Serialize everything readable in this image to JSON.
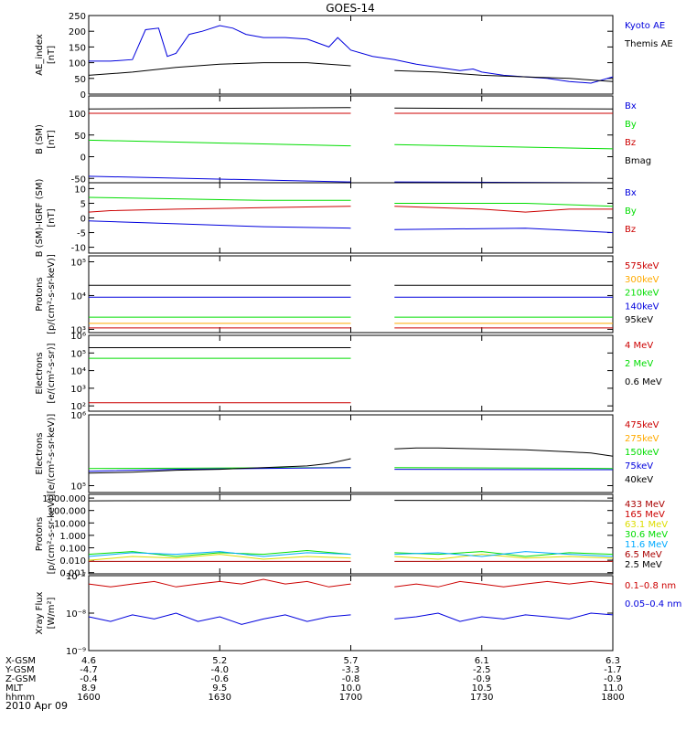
{
  "title": "GOES-14",
  "date": "2010 Apr 09",
  "colors": {
    "black": "#000000",
    "blue": "#0000dd",
    "green": "#00dd00",
    "red": "#cc0000",
    "orange": "#ffaa00",
    "yellow": "#dddd00",
    "cyan": "#00aaff",
    "darkred": "#aa0000"
  },
  "footer": {
    "rows": [
      {
        "label": "X-GSM",
        "values": [
          "4.6",
          "5.2",
          "5.7",
          "6.1",
          "6.3"
        ]
      },
      {
        "label": "Y-GSM",
        "values": [
          "-4.7",
          "-4.0",
          "-3.3",
          "-2.5",
          "-1.7"
        ]
      },
      {
        "label": "Z-GSM",
        "values": [
          "-0.4",
          "-0.6",
          "-0.8",
          "-0.9",
          "-0.9"
        ]
      },
      {
        "label": "MLT",
        "values": [
          "8.9",
          "9.5",
          "10.0",
          "10.5",
          "11.0"
        ]
      },
      {
        "label": "hhmm",
        "values": [
          "1600",
          "1630",
          "1700",
          "1730",
          "1800"
        ]
      }
    ]
  },
  "chart_data": [
    {
      "type": "line",
      "ylabel": "AE_index\n[nT]",
      "yscale": "linear",
      "ylim": [
        0,
        250
      ],
      "yticks": [
        "0",
        "50",
        "100",
        "150",
        "200",
        "250"
      ],
      "ytick_values": [
        0,
        50,
        100,
        150,
        200,
        250
      ],
      "series": [
        {
          "name": "Kyoto AE",
          "color": "blue",
          "x": [
            1600,
            1605,
            1610,
            1613,
            1616,
            1618,
            1620,
            1623,
            1626,
            1630,
            1633,
            1636,
            1640,
            1645,
            1650,
            1655,
            1657,
            1700,
            1705,
            1710,
            1715,
            1720,
            1725,
            1728,
            1730,
            1735,
            1740,
            1745,
            1750,
            1755,
            1800
          ],
          "y": [
            105,
            105,
            110,
            205,
            210,
            120,
            130,
            190,
            200,
            218,
            210,
            190,
            180,
            180,
            175,
            150,
            180,
            140,
            120,
            110,
            95,
            85,
            75,
            80,
            70,
            60,
            55,
            50,
            40,
            35,
            55
          ]
        },
        {
          "name": "Themis AE",
          "color": "black",
          "x": [
            1600,
            1610,
            1620,
            1630,
            1640,
            1650,
            1700,
            1710,
            1720,
            1730,
            1740,
            1750,
            1800
          ],
          "y": [
            60,
            70,
            85,
            95,
            100,
            100,
            90,
            75,
            70,
            60,
            55,
            50,
            40
          ]
        }
      ]
    },
    {
      "type": "line",
      "ylabel": "B (SM)\n[nT]",
      "yscale": "linear",
      "ylim": [
        -60,
        140
      ],
      "yticks": [
        "-50",
        "0",
        "50",
        "100"
      ],
      "ytick_values": [
        -50,
        0,
        50,
        100
      ],
      "series": [
        {
          "name": "Bx",
          "color": "blue",
          "x": [
            1600,
            1700,
            1710,
            1800
          ],
          "y": [
            -45,
            -58,
            -58,
            -60
          ]
        },
        {
          "name": "By",
          "color": "green",
          "x": [
            1600,
            1700,
            1710,
            1800
          ],
          "y": [
            38,
            25,
            28,
            18
          ]
        },
        {
          "name": "Bz",
          "color": "red",
          "x": [
            1600,
            1700,
            1710,
            1800
          ],
          "y": [
            100,
            100,
            100,
            100
          ]
        },
        {
          "name": "Bmag",
          "color": "black",
          "x": [
            1600,
            1700,
            1710,
            1800
          ],
          "y": [
            110,
            113,
            112,
            110
          ]
        }
      ]
    },
    {
      "type": "line",
      "ylabel": "B (SM)-IGRF (SM)\n[nT]",
      "yscale": "linear",
      "ylim": [
        -12,
        12
      ],
      "yticks": [
        "-10",
        "-5",
        "0",
        "5",
        "10"
      ],
      "ytick_values": [
        -10,
        -5,
        0,
        5,
        10
      ],
      "series": [
        {
          "name": "Bx",
          "color": "blue",
          "x": [
            1600,
            1620,
            1640,
            1700,
            1710,
            1740,
            1800
          ],
          "y": [
            -1,
            -2,
            -3,
            -3.5,
            -4,
            -3.5,
            -5
          ]
        },
        {
          "name": "By",
          "color": "green",
          "x": [
            1600,
            1620,
            1640,
            1700,
            1710,
            1740,
            1800
          ],
          "y": [
            7,
            6.5,
            6,
            6,
            5,
            5,
            4
          ]
        },
        {
          "name": "Bz",
          "color": "red",
          "x": [
            1600,
            1605,
            1620,
            1640,
            1700,
            1710,
            1730,
            1740,
            1750,
            1800
          ],
          "y": [
            2,
            2.5,
            3,
            3.5,
            4,
            4,
            3,
            2,
            3,
            3
          ]
        }
      ]
    },
    {
      "type": "line",
      "ylabel": "Protons\n[p/(cm²-s-sr-keV)]",
      "yscale": "log",
      "ylim": [
        800,
        150000
      ],
      "yticks": [
        "10³",
        "10⁴",
        "10⁵"
      ],
      "ytick_values": [
        1000,
        10000,
        100000
      ],
      "series": [
        {
          "name": "575keV",
          "color": "red",
          "x": [
            1600,
            1700,
            1710,
            1800
          ],
          "y": [
            1100,
            1100,
            1100,
            1100
          ]
        },
        {
          "name": "300keV",
          "color": "orange",
          "x": [
            1600,
            1700,
            1710,
            1800
          ],
          "y": [
            1500,
            1500,
            1500,
            1500
          ]
        },
        {
          "name": "210keV",
          "color": "green",
          "x": [
            1600,
            1700,
            1710,
            1800
          ],
          "y": [
            2300,
            2300,
            2300,
            2300
          ]
        },
        {
          "name": "140keV",
          "color": "blue",
          "x": [
            1600,
            1700,
            1710,
            1800
          ],
          "y": [
            9000,
            9000,
            9000,
            9000
          ]
        },
        {
          "name": "95keV",
          "color": "black",
          "x": [
            1600,
            1700,
            1710,
            1800
          ],
          "y": [
            20000,
            20000,
            20000,
            20000
          ]
        }
      ]
    },
    {
      "type": "line",
      "ylabel": "Electrons\n[e/(cm²-s-sr)]",
      "yscale": "log",
      "ylim": [
        50,
        1000000
      ],
      "yticks": [
        "10²",
        "10³",
        "10⁴",
        "10⁵",
        "10⁶"
      ],
      "ytick_values": [
        100,
        1000,
        10000,
        100000,
        1000000
      ],
      "series": [
        {
          "name": "4 MeV",
          "color": "red",
          "x": [
            1600,
            1700
          ],
          "y": [
            150,
            150
          ]
        },
        {
          "name": "2 MeV",
          "color": "green",
          "x": [
            1600,
            1700
          ],
          "y": [
            50000,
            50000
          ]
        },
        {
          "name": "0.6 MeV",
          "color": "black",
          "x": [
            1600,
            1700
          ],
          "y": [
            200000,
            200000
          ]
        }
      ]
    },
    {
      "type": "line",
      "ylabel": "Electrons\n[e/(cm²-s-sr-keV)]",
      "yscale": "log",
      "ylim": [
        80000,
        1000000
      ],
      "yticks": [
        "10⁵",
        "10⁶"
      ],
      "ytick_values": [
        100000,
        1000000
      ],
      "series": [
        {
          "name": "475keV",
          "color": "red",
          "x": [],
          "y": []
        },
        {
          "name": "275keV",
          "color": "orange",
          "x": [],
          "y": []
        },
        {
          "name": "150keV",
          "color": "green",
          "x": [
            1600,
            1700,
            1710,
            1800
          ],
          "y": [
            175000,
            180000,
            180000,
            175000
          ]
        },
        {
          "name": "75keV",
          "color": "blue",
          "x": [
            1600,
            1620,
            1700,
            1710,
            1800
          ],
          "y": [
            160000,
            170000,
            180000,
            170000,
            168000
          ]
        },
        {
          "name": "40keV",
          "color": "black",
          "x": [
            1600,
            1610,
            1620,
            1630,
            1640,
            1650,
            1655,
            1700,
            1710,
            1715,
            1720,
            1730,
            1740,
            1750,
            1755,
            1800
          ],
          "y": [
            150000,
            155000,
            165000,
            170000,
            180000,
            190000,
            205000,
            240000,
            330000,
            340000,
            340000,
            330000,
            320000,
            300000,
            290000,
            260000
          ]
        }
      ]
    },
    {
      "type": "line",
      "ylabel": "Protons\n[p/(cm²-s-sr-keV)]",
      "yscale": "log",
      "ylim": [
        0.0008,
        2000
      ],
      "yticks": [
        "0.001",
        "0.010",
        "0.100",
        "1.000",
        "10.000",
        "100.000",
        "1000.000"
      ],
      "ytick_values": [
        0.001,
        0.01,
        0.1,
        1,
        10,
        100,
        1000
      ],
      "series": [
        {
          "name": "433 MeV",
          "color": "darkred",
          "x": [],
          "y": []
        },
        {
          "name": "165 MeV",
          "color": "red",
          "x": [],
          "y": []
        },
        {
          "name": "63.1 MeV",
          "color": "yellow",
          "x": [
            1600,
            1610,
            1620,
            1630,
            1640,
            1650,
            1700,
            1710,
            1720,
            1730,
            1740,
            1750,
            1800
          ],
          "y": [
            0.01,
            0.02,
            0.015,
            0.03,
            0.012,
            0.02,
            0.015,
            0.02,
            0.012,
            0.03,
            0.015,
            0.02,
            0.015
          ]
        },
        {
          "name": "30.6 MeV",
          "color": "green",
          "x": [
            1600,
            1610,
            1620,
            1630,
            1640,
            1650,
            1700,
            1710,
            1720,
            1730,
            1740,
            1750,
            1800
          ],
          "y": [
            0.03,
            0.05,
            0.02,
            0.04,
            0.03,
            0.06,
            0.03,
            0.04,
            0.03,
            0.05,
            0.02,
            0.04,
            0.03
          ]
        },
        {
          "name": "11.6 MeV",
          "color": "cyan",
          "x": [
            1600,
            1610,
            1620,
            1630,
            1640,
            1650,
            1700,
            1710,
            1720,
            1730,
            1740,
            1750,
            1800
          ],
          "y": [
            0.02,
            0.04,
            0.03,
            0.05,
            0.02,
            0.04,
            0.03,
            0.03,
            0.04,
            0.02,
            0.05,
            0.03,
            0.02
          ]
        },
        {
          "name": "6.5 MeV",
          "color": "darkred",
          "x": [
            1600,
            1700,
            1710,
            1800
          ],
          "y": [
            0.008,
            0.008,
            0.008,
            0.008
          ]
        },
        {
          "name": "2.5 MeV",
          "color": "black",
          "x": [
            1600,
            1700,
            1710,
            1800
          ],
          "y": [
            600,
            650,
            650,
            600
          ]
        }
      ]
    },
    {
      "type": "line",
      "ylabel": "Xray Flux\n[W/m²]",
      "yscale": "log",
      "ylim": [
        1e-09,
        1e-07
      ],
      "yticks": [
        "10⁻⁹",
        "10⁻⁸",
        "10⁻⁷"
      ],
      "ytick_values": [
        1e-09,
        1e-08,
        1e-07
      ],
      "series": [
        {
          "name": "0.1–0.8 nm",
          "color": "red",
          "x": [
            1600,
            1605,
            1610,
            1615,
            1620,
            1625,
            1630,
            1635,
            1640,
            1645,
            1650,
            1655,
            1700,
            1710,
            1715,
            1720,
            1725,
            1730,
            1735,
            1740,
            1745,
            1750,
            1755,
            1800
          ],
          "y": [
            6e-08,
            5e-08,
            6e-08,
            7e-08,
            5e-08,
            6e-08,
            7e-08,
            6e-08,
            8e-08,
            6e-08,
            7e-08,
            5e-08,
            6e-08,
            5e-08,
            6e-08,
            5e-08,
            7e-08,
            6e-08,
            5e-08,
            6e-08,
            7e-08,
            6e-08,
            7e-08,
            6e-08
          ]
        },
        {
          "name": "0.05–0.4 nm",
          "color": "blue",
          "x": [
            1600,
            1605,
            1610,
            1615,
            1620,
            1625,
            1630,
            1635,
            1640,
            1645,
            1650,
            1655,
            1700,
            1710,
            1715,
            1720,
            1725,
            1730,
            1735,
            1740,
            1745,
            1750,
            1755,
            1800
          ],
          "y": [
            8e-09,
            6e-09,
            9e-09,
            7e-09,
            1e-08,
            6e-09,
            8e-09,
            5e-09,
            7e-09,
            9e-09,
            6e-09,
            8e-09,
            9e-09,
            7e-09,
            8e-09,
            1e-08,
            6e-09,
            8e-09,
            7e-09,
            9e-09,
            8e-09,
            7e-09,
            1e-08,
            9e-09
          ]
        }
      ]
    }
  ]
}
